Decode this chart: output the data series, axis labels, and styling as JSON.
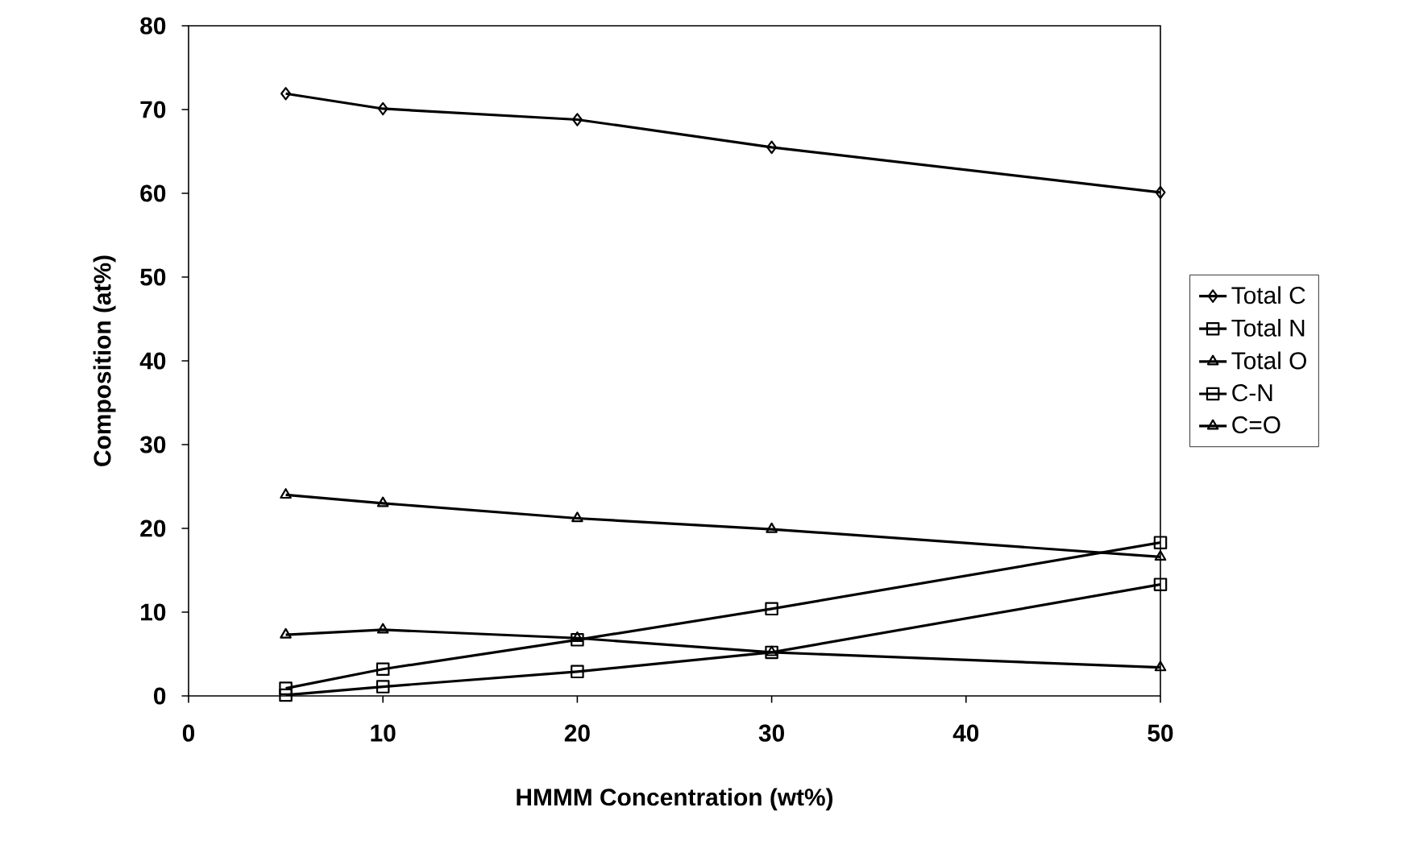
{
  "chart_data": {
    "type": "line",
    "xlabel": "HMMM Concentration (wt%)",
    "ylabel": "Composition (at%)",
    "x": [
      5,
      10,
      20,
      30,
      50
    ],
    "xlim": [
      0,
      50
    ],
    "xticks": [
      0,
      10,
      20,
      30,
      40,
      50
    ],
    "ylim": [
      0,
      80
    ],
    "yticks": [
      0,
      10,
      20,
      30,
      40,
      50,
      60,
      70,
      80
    ],
    "grid": false,
    "legend": "right",
    "line_style": "solid",
    "series": [
      {
        "name": "Total C",
        "color": "#000000",
        "marker": "diamond",
        "values": [
          71.9,
          70.1,
          68.8,
          65.5,
          60.1
        ]
      },
      {
        "name": "Total N",
        "color": "#000000",
        "marker": "square",
        "values": [
          0.9,
          3.2,
          6.7,
          10.4,
          18.3
        ]
      },
      {
        "name": "Total O",
        "color": "#000000",
        "marker": "triangle",
        "values": [
          24.0,
          23.0,
          21.2,
          19.9,
          16.6
        ]
      },
      {
        "name": "C-N",
        "color": "#000000",
        "marker": "square",
        "values": [
          0.1,
          1.1,
          2.9,
          5.2,
          13.3
        ]
      },
      {
        "name": "C=O",
        "color": "#000000",
        "marker": "triangle",
        "values": [
          7.3,
          7.9,
          6.9,
          5.2,
          3.4
        ]
      }
    ]
  }
}
